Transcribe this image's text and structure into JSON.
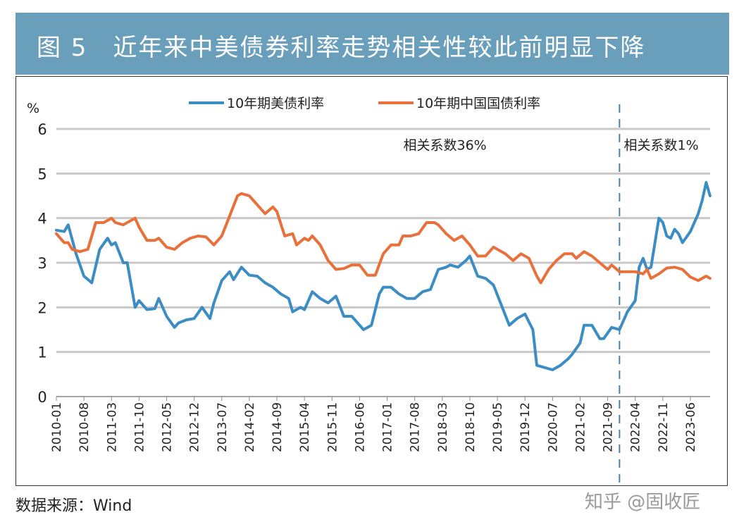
{
  "title": "图 5　近年来中美债券利率走势相关性较此前明显下降",
  "source": "数据来源：Wind",
  "watermark": "知乎 @固收匠",
  "chart_data": {
    "type": "line",
    "title": "",
    "ylabel": "%",
    "xlabel": "",
    "ylim": [
      0,
      6
    ],
    "yticks": [
      "0",
      "1",
      "2",
      "3",
      "4",
      "5",
      "6"
    ],
    "xlim": [
      "2010-01",
      "2023-11"
    ],
    "xticks": [
      "2010-01",
      "2010-08",
      "2011-03",
      "2011-10",
      "2012-05",
      "2012-12",
      "2013-07",
      "2014-02",
      "2014-09",
      "2015-04",
      "2015-11",
      "2016-06",
      "2017-01",
      "2017-08",
      "2018-03",
      "2018-10",
      "2019-05",
      "2019-12",
      "2020-07",
      "2021-02",
      "2021-09",
      "2022-04",
      "2022-11",
      "2023-06"
    ],
    "grid": true,
    "legend_position": "top",
    "divider": {
      "x": "2021-12",
      "style": "dashed",
      "color": "#4a7fa6"
    },
    "annotations": [
      {
        "text": "相关系数36%",
        "x": "2017-06",
        "y": 5.6
      },
      {
        "text": "相关系数1%",
        "x": "2022-02",
        "y": 5.6
      }
    ],
    "series": [
      {
        "name": "10年期美债利率",
        "color": "#3b8dc4",
        "points": [
          [
            "2010-01",
            3.73
          ],
          [
            "2010-03",
            3.7
          ],
          [
            "2010-04",
            3.85
          ],
          [
            "2010-06",
            3.2
          ],
          [
            "2010-08",
            2.7
          ],
          [
            "2010-10",
            2.55
          ],
          [
            "2010-12",
            3.3
          ],
          [
            "2011-02",
            3.55
          ],
          [
            "2011-03",
            3.4
          ],
          [
            "2011-04",
            3.45
          ],
          [
            "2011-06",
            3.0
          ],
          [
            "2011-07",
            3.0
          ],
          [
            "2011-09",
            2.0
          ],
          [
            "2011-10",
            2.15
          ],
          [
            "2011-12",
            1.95
          ],
          [
            "2012-02",
            1.97
          ],
          [
            "2012-03",
            2.2
          ],
          [
            "2012-05",
            1.8
          ],
          [
            "2012-07",
            1.55
          ],
          [
            "2012-08",
            1.65
          ],
          [
            "2012-10",
            1.72
          ],
          [
            "2012-12",
            1.75
          ],
          [
            "2013-02",
            2.0
          ],
          [
            "2013-04",
            1.75
          ],
          [
            "2013-05",
            2.1
          ],
          [
            "2013-07",
            2.6
          ],
          [
            "2013-09",
            2.8
          ],
          [
            "2013-10",
            2.62
          ],
          [
            "2013-12",
            2.9
          ],
          [
            "2014-02",
            2.72
          ],
          [
            "2014-04",
            2.7
          ],
          [
            "2014-06",
            2.55
          ],
          [
            "2014-08",
            2.45
          ],
          [
            "2014-10",
            2.3
          ],
          [
            "2014-12",
            2.2
          ],
          [
            "2015-01",
            1.9
          ],
          [
            "2015-03",
            2.0
          ],
          [
            "2015-04",
            1.95
          ],
          [
            "2015-06",
            2.35
          ],
          [
            "2015-08",
            2.2
          ],
          [
            "2015-10",
            2.1
          ],
          [
            "2015-12",
            2.25
          ],
          [
            "2016-02",
            1.8
          ],
          [
            "2016-04",
            1.8
          ],
          [
            "2016-07",
            1.5
          ],
          [
            "2016-09",
            1.6
          ],
          [
            "2016-11",
            2.3
          ],
          [
            "2016-12",
            2.45
          ],
          [
            "2017-02",
            2.45
          ],
          [
            "2017-04",
            2.3
          ],
          [
            "2017-06",
            2.2
          ],
          [
            "2017-08",
            2.2
          ],
          [
            "2017-10",
            2.35
          ],
          [
            "2017-12",
            2.4
          ],
          [
            "2018-02",
            2.85
          ],
          [
            "2018-04",
            2.9
          ],
          [
            "2018-05",
            2.95
          ],
          [
            "2018-07",
            2.9
          ],
          [
            "2018-09",
            3.05
          ],
          [
            "2018-10",
            3.15
          ],
          [
            "2018-12",
            2.7
          ],
          [
            "2019-02",
            2.65
          ],
          [
            "2019-04",
            2.5
          ],
          [
            "2019-06",
            2.05
          ],
          [
            "2019-08",
            1.6
          ],
          [
            "2019-10",
            1.75
          ],
          [
            "2019-12",
            1.85
          ],
          [
            "2020-02",
            1.5
          ],
          [
            "2020-03",
            0.7
          ],
          [
            "2020-05",
            0.65
          ],
          [
            "2020-07",
            0.6
          ],
          [
            "2020-09",
            0.7
          ],
          [
            "2020-11",
            0.85
          ],
          [
            "2020-12",
            0.95
          ],
          [
            "2021-02",
            1.2
          ],
          [
            "2021-03",
            1.6
          ],
          [
            "2021-05",
            1.6
          ],
          [
            "2021-07",
            1.3
          ],
          [
            "2021-08",
            1.3
          ],
          [
            "2021-10",
            1.55
          ],
          [
            "2021-12",
            1.5
          ],
          [
            "2022-02",
            1.9
          ],
          [
            "2022-04",
            2.15
          ],
          [
            "2022-05",
            2.9
          ],
          [
            "2022-06",
            3.1
          ],
          [
            "2022-07",
            2.85
          ],
          [
            "2022-08",
            2.9
          ],
          [
            "2022-10",
            4.0
          ],
          [
            "2022-11",
            3.9
          ],
          [
            "2022-12",
            3.6
          ],
          [
            "2023-01",
            3.55
          ],
          [
            "2023-02",
            3.75
          ],
          [
            "2023-03",
            3.65
          ],
          [
            "2023-04",
            3.45
          ],
          [
            "2023-06",
            3.7
          ],
          [
            "2023-08",
            4.1
          ],
          [
            "2023-09",
            4.4
          ],
          [
            "2023-10",
            4.8
          ],
          [
            "2023-11",
            4.5
          ]
        ]
      },
      {
        "name": "10年期中国国债利率",
        "color": "#e8703a",
        "points": [
          [
            "2010-01",
            3.65
          ],
          [
            "2010-03",
            3.45
          ],
          [
            "2010-04",
            3.45
          ],
          [
            "2010-05",
            3.3
          ],
          [
            "2010-07",
            3.25
          ],
          [
            "2010-09",
            3.3
          ],
          [
            "2010-11",
            3.9
          ],
          [
            "2011-01",
            3.9
          ],
          [
            "2011-03",
            4.0
          ],
          [
            "2011-04",
            3.9
          ],
          [
            "2011-06",
            3.85
          ],
          [
            "2011-08",
            3.95
          ],
          [
            "2011-09",
            4.0
          ],
          [
            "2011-10",
            3.8
          ],
          [
            "2011-12",
            3.5
          ],
          [
            "2012-02",
            3.5
          ],
          [
            "2012-03",
            3.55
          ],
          [
            "2012-05",
            3.35
          ],
          [
            "2012-07",
            3.3
          ],
          [
            "2012-09",
            3.45
          ],
          [
            "2012-11",
            3.55
          ],
          [
            "2013-01",
            3.6
          ],
          [
            "2013-03",
            3.58
          ],
          [
            "2013-05",
            3.4
          ],
          [
            "2013-07",
            3.6
          ],
          [
            "2013-09",
            4.05
          ],
          [
            "2013-11",
            4.5
          ],
          [
            "2013-12",
            4.55
          ],
          [
            "2014-02",
            4.5
          ],
          [
            "2014-04",
            4.3
          ],
          [
            "2014-06",
            4.1
          ],
          [
            "2014-08",
            4.25
          ],
          [
            "2014-09",
            4.15
          ],
          [
            "2014-11",
            3.6
          ],
          [
            "2015-01",
            3.65
          ],
          [
            "2015-02",
            3.4
          ],
          [
            "2015-04",
            3.55
          ],
          [
            "2015-05",
            3.5
          ],
          [
            "2015-06",
            3.6
          ],
          [
            "2015-08",
            3.4
          ],
          [
            "2015-10",
            3.05
          ],
          [
            "2015-12",
            2.85
          ],
          [
            "2016-02",
            2.87
          ],
          [
            "2016-04",
            2.95
          ],
          [
            "2016-06",
            2.95
          ],
          [
            "2016-08",
            2.72
          ],
          [
            "2016-10",
            2.72
          ],
          [
            "2016-12",
            3.2
          ],
          [
            "2017-02",
            3.4
          ],
          [
            "2017-04",
            3.4
          ],
          [
            "2017-05",
            3.6
          ],
          [
            "2017-07",
            3.6
          ],
          [
            "2017-09",
            3.65
          ],
          [
            "2017-11",
            3.9
          ],
          [
            "2018-01",
            3.9
          ],
          [
            "2018-02",
            3.85
          ],
          [
            "2018-04",
            3.65
          ],
          [
            "2018-06",
            3.5
          ],
          [
            "2018-08",
            3.6
          ],
          [
            "2018-10",
            3.4
          ],
          [
            "2018-12",
            3.15
          ],
          [
            "2019-02",
            3.15
          ],
          [
            "2019-04",
            3.35
          ],
          [
            "2019-06",
            3.25
          ],
          [
            "2019-07",
            3.2
          ],
          [
            "2019-09",
            3.05
          ],
          [
            "2019-11",
            3.2
          ],
          [
            "2020-01",
            3.1
          ],
          [
            "2020-03",
            2.7
          ],
          [
            "2020-04",
            2.55
          ],
          [
            "2020-06",
            2.85
          ],
          [
            "2020-08",
            3.05
          ],
          [
            "2020-10",
            3.2
          ],
          [
            "2020-12",
            3.2
          ],
          [
            "2021-01",
            3.1
          ],
          [
            "2021-03",
            3.25
          ],
          [
            "2021-05",
            3.15
          ],
          [
            "2021-07",
            3.0
          ],
          [
            "2021-09",
            2.85
          ],
          [
            "2021-10",
            2.95
          ],
          [
            "2021-12",
            2.8
          ],
          [
            "2022-02",
            2.8
          ],
          [
            "2022-04",
            2.8
          ],
          [
            "2022-06",
            2.75
          ],
          [
            "2022-07",
            2.85
          ],
          [
            "2022-08",
            2.65
          ],
          [
            "2022-10",
            2.75
          ],
          [
            "2022-12",
            2.88
          ],
          [
            "2023-02",
            2.9
          ],
          [
            "2023-04",
            2.85
          ],
          [
            "2023-06",
            2.68
          ],
          [
            "2023-08",
            2.6
          ],
          [
            "2023-10",
            2.7
          ],
          [
            "2023-11",
            2.65
          ]
        ]
      }
    ]
  }
}
